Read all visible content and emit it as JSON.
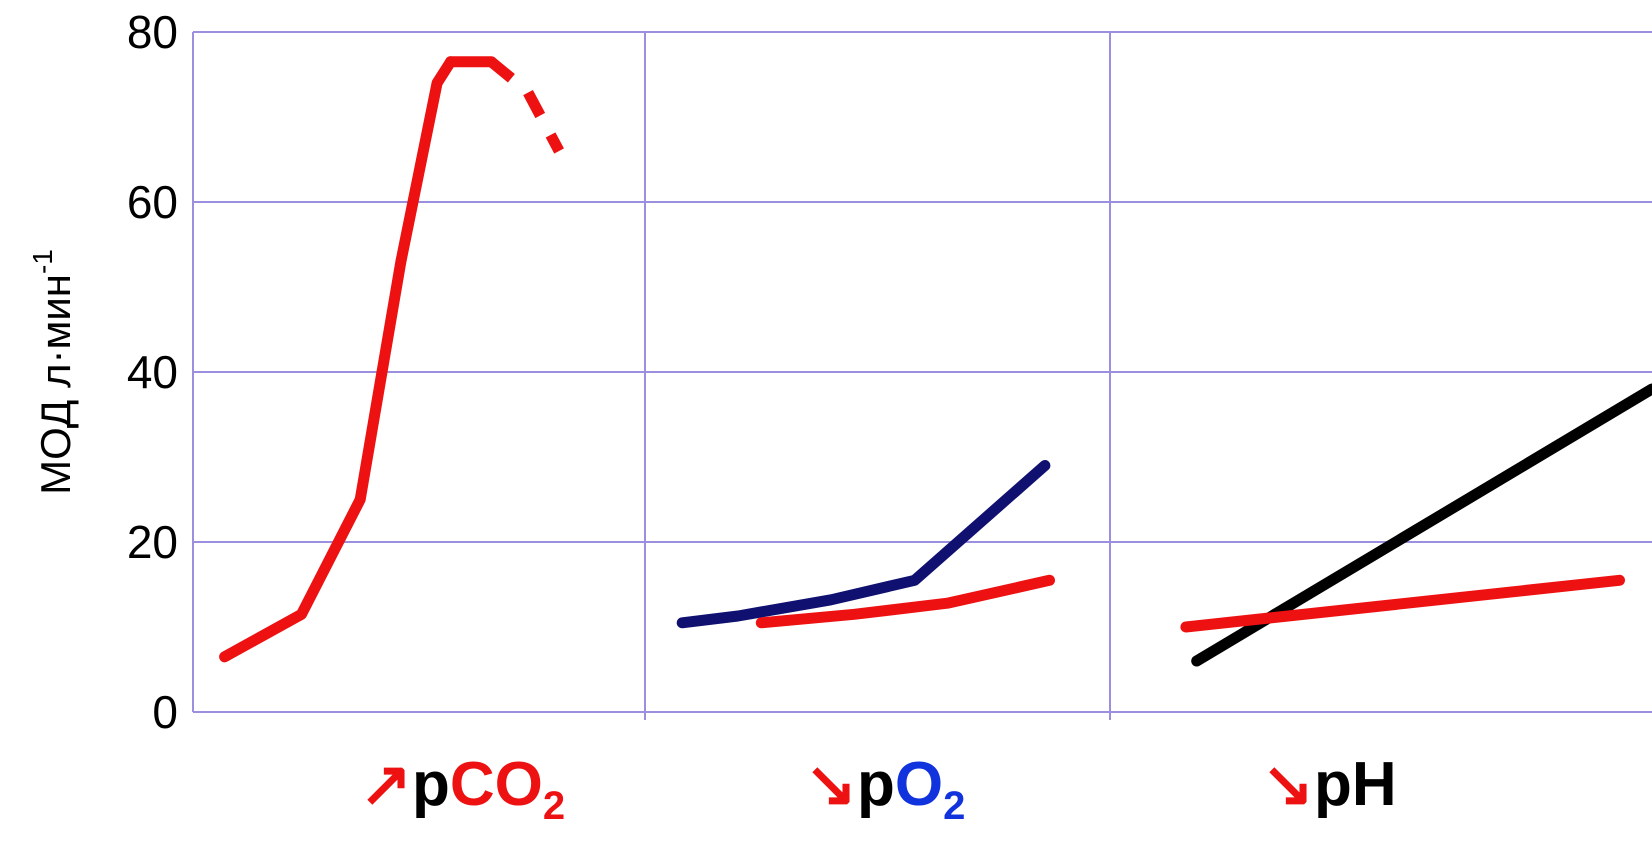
{
  "colors": {
    "grid": "#9b8fe0",
    "red": "#ee1111",
    "navy": "#101070",
    "black": "#000000",
    "blue": "#1133dd"
  },
  "chart_data": {
    "type": "line",
    "ylabel": {
      "main": "МОД  л·мин",
      "sup": "-1"
    },
    "ylim": [
      0,
      80
    ],
    "yticks": [
      "0",
      "20",
      "40",
      "60",
      "80"
    ],
    "grid": true,
    "panels": [
      {
        "label_parts": [
          {
            "text": "↗",
            "color": "red"
          },
          {
            "text": "p",
            "color": "black"
          },
          {
            "text": "CO",
            "color": "red"
          },
          {
            "text": "2",
            "color": "red",
            "sub": true
          }
        ],
        "series": [
          {
            "color": "red",
            "style": "solid",
            "x": [
              0.07,
              0.24,
              0.37,
              0.46,
              0.54,
              0.57
            ],
            "y": [
              6.5,
              11.5,
              25,
              53,
              74,
              76.5
            ]
          },
          {
            "color": "red",
            "style": "solid",
            "x": [
              0.57,
              0.66
            ],
            "y": [
              76.5,
              76.5
            ]
          },
          {
            "color": "red",
            "style": "dashed",
            "x": [
              0.66,
              0.74,
              0.81
            ],
            "y": [
              76.5,
              73,
              66
            ]
          }
        ]
      },
      {
        "label_parts": [
          {
            "text": "↘",
            "color": "red"
          },
          {
            "text": "p",
            "color": "black"
          },
          {
            "text": "O",
            "color": "blue"
          },
          {
            "text": "2",
            "color": "blue",
            "sub": true
          }
        ],
        "series": [
          {
            "color": "navy",
            "style": "solid",
            "x": [
              0.08,
              0.2,
              0.4,
              0.58,
              0.86
            ],
            "y": [
              10.5,
              11.3,
              13.2,
              15.5,
              29
            ]
          },
          {
            "color": "red",
            "style": "solid",
            "x": [
              0.25,
              0.45,
              0.65,
              0.87
            ],
            "y": [
              10.5,
              11.5,
              12.8,
              15.5
            ]
          }
        ]
      },
      {
        "label_parts": [
          {
            "text": "↘",
            "color": "red"
          },
          {
            "text": "p",
            "color": "black"
          },
          {
            "text": "H",
            "color": "black"
          }
        ],
        "series": [
          {
            "color": "black",
            "style": "solid",
            "x": [
              0.16,
              1.0
            ],
            "y": [
              6,
              38
            ]
          },
          {
            "color": "red",
            "style": "solid",
            "x": [
              0.14,
              0.94
            ],
            "y": [
              10,
              15.5
            ]
          }
        ]
      }
    ]
  }
}
